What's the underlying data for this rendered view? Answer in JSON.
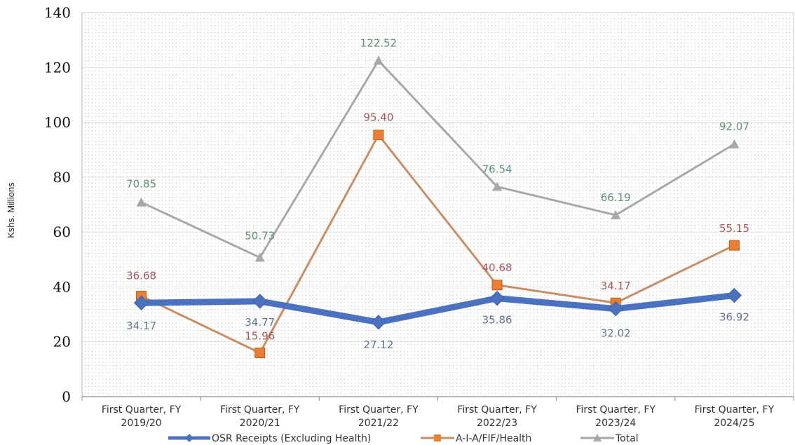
{
  "chart_data": {
    "type": "line",
    "ylabel": "Kshs. Millions",
    "ylim": [
      0,
      140
    ],
    "yticks": [
      "0",
      "20",
      "40",
      "60",
      "80",
      "100",
      "120",
      "140"
    ],
    "categories": [
      [
        "First Quarter, FY",
        "2019/20"
      ],
      [
        "First Quarter, FY",
        "2020/21"
      ],
      [
        "First Quarter, FY",
        "2021/22"
      ],
      [
        "First Quarter, FY",
        "2022/23"
      ],
      [
        "First Quarter, FY",
        "2023/24"
      ],
      [
        "First Quarter, FY",
        "2024/25"
      ]
    ],
    "grid": true,
    "legend_position": "bottom",
    "series": [
      {
        "name": "OSR Receipts (Excluding Health)",
        "values": [
          34.17,
          34.77,
          27.12,
          35.86,
          32.02,
          36.92
        ],
        "labels": [
          "34.17",
          "34.77",
          "27.12",
          "35.86",
          "32.02",
          "36.92"
        ],
        "color": "#4a72c0",
        "label_color": "#5f7491",
        "marker": "diamond"
      },
      {
        "name": "A-I-A/FIF/Health",
        "values": [
          36.68,
          15.96,
          95.4,
          40.68,
          34.17,
          55.15
        ],
        "labels": [
          "36.68",
          "15.96",
          "95.40",
          "40.68",
          "34.17",
          "55.15"
        ],
        "color": "#c98e64",
        "marker_color": "#ed7d31",
        "label_color": "#a6585c",
        "marker": "square"
      },
      {
        "name": "Total",
        "values": [
          70.85,
          50.73,
          122.52,
          76.54,
          66.19,
          92.07
        ],
        "labels": [
          "70.85",
          "50.73",
          "122.52",
          "76.54",
          "66.19",
          "92.07"
        ],
        "color": "#a8a8a8",
        "label_color": "#5f8f73",
        "marker": "triangle"
      }
    ]
  }
}
